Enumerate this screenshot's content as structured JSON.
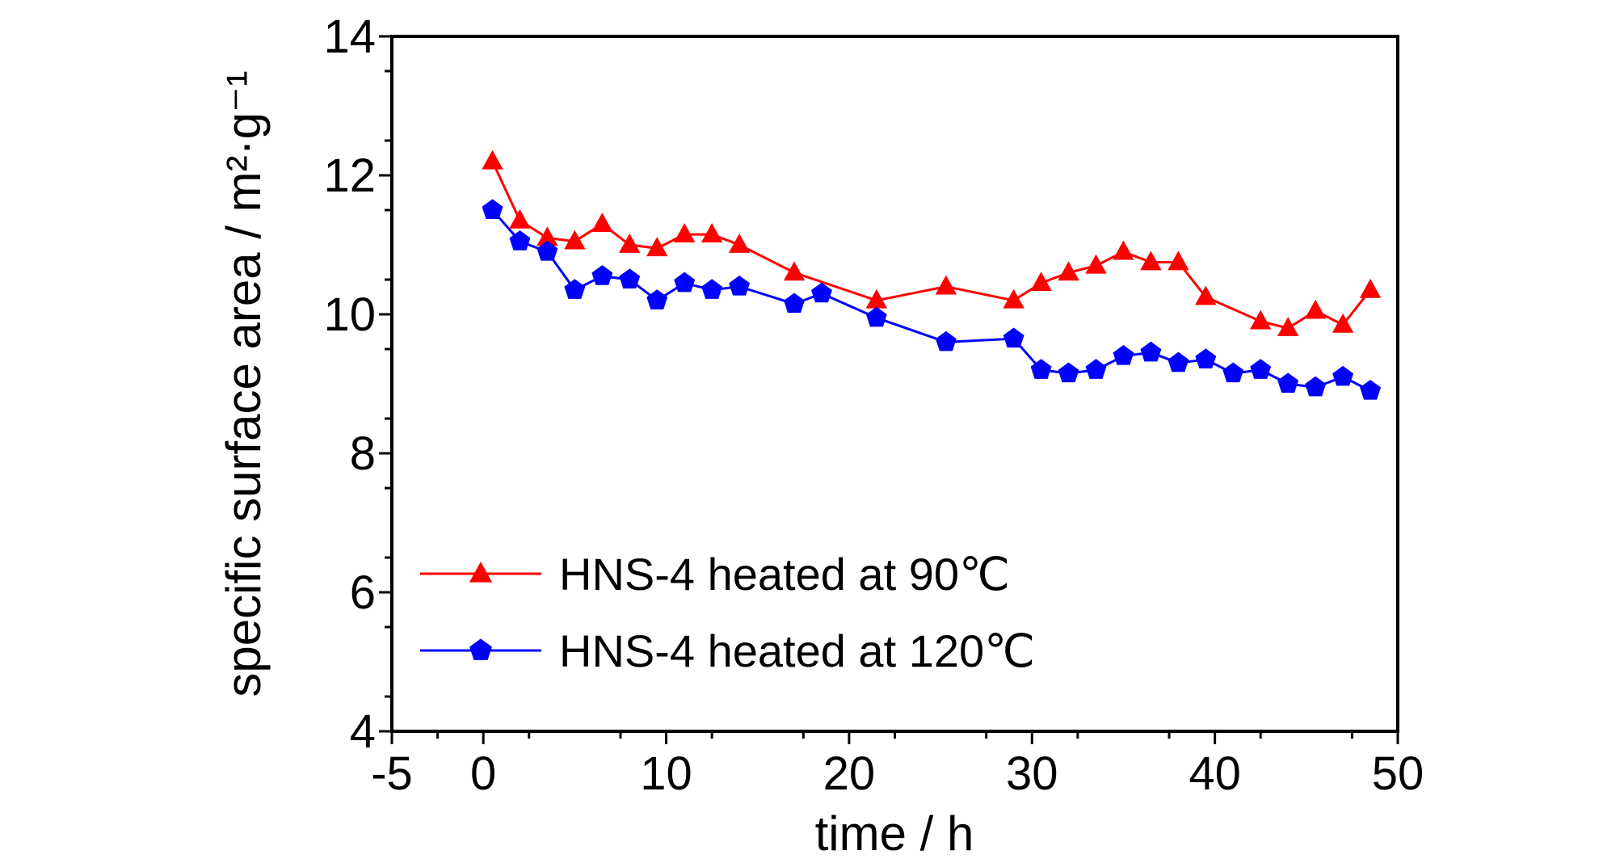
{
  "chart_data": {
    "type": "line",
    "xlabel": "time / h",
    "ylabel": "specific surface area / m²·g⁻¹",
    "xlim": [
      -5,
      50
    ],
    "ylim": [
      4,
      14
    ],
    "x_ticks": [
      "-5",
      "0",
      "10",
      "20",
      "30",
      "40",
      "50"
    ],
    "y_ticks": [
      "4",
      "6",
      "8",
      "10",
      "12",
      "14"
    ],
    "legend_position": "bottom-left",
    "grid": false,
    "series": [
      {
        "name": "HNS-4 heated at 90℃",
        "color": "#ff0000",
        "marker": "triangle",
        "x": [
          0.5,
          2,
          3.5,
          5,
          6.5,
          8,
          9.5,
          11,
          12.5,
          14,
          17,
          21.5,
          25.3,
          29,
          30.5,
          32,
          33.5,
          35,
          36.5,
          38,
          39.5,
          42.5,
          44,
          45.5,
          47,
          48.5
        ],
        "y": [
          12.2,
          11.35,
          11.1,
          11.05,
          11.3,
          11.0,
          10.95,
          11.15,
          11.15,
          11.0,
          10.6,
          10.2,
          10.4,
          10.2,
          10.45,
          10.6,
          10.7,
          10.9,
          10.75,
          10.75,
          10.25,
          9.9,
          9.8,
          10.05,
          9.85,
          10.35
        ]
      },
      {
        "name": "HNS-4 heated at 120℃",
        "color": "#0000ff",
        "marker": "pentagon",
        "x": [
          0.5,
          2,
          3.5,
          5,
          6.5,
          8,
          9.5,
          11,
          12.5,
          14,
          17,
          18.5,
          21.5,
          25.3,
          29,
          30.5,
          32,
          33.5,
          35,
          36.5,
          38,
          39.5,
          41,
          42.5,
          44,
          45.5,
          47,
          48.5
        ],
        "y": [
          11.5,
          11.05,
          10.9,
          10.35,
          10.55,
          10.5,
          10.2,
          10.45,
          10.35,
          10.4,
          10.15,
          10.3,
          9.95,
          9.6,
          9.65,
          9.2,
          9.15,
          9.2,
          9.4,
          9.45,
          9.3,
          9.35,
          9.15,
          9.2,
          9.0,
          8.95,
          9.1,
          8.9
        ]
      }
    ]
  }
}
